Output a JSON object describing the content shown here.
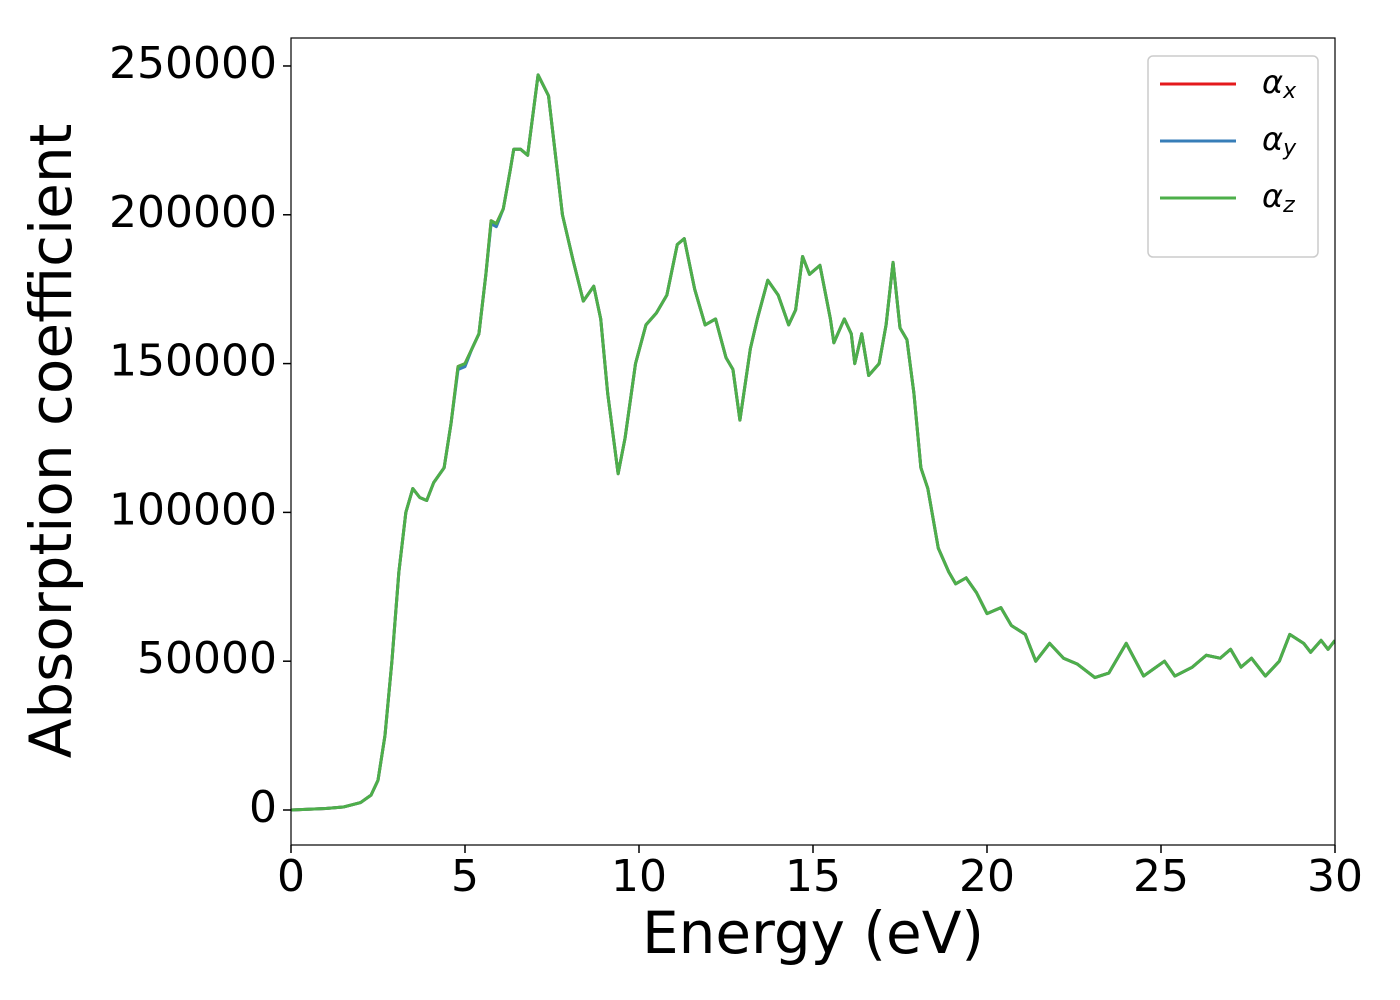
{
  "chart_data": {
    "type": "line",
    "xlabel": "Energy (eV)",
    "ylabel": "Absorption coefficient",
    "xlim": [
      0,
      30
    ],
    "ylim": [
      -11760,
      259400
    ],
    "xticks": [
      0,
      5,
      10,
      15,
      20,
      25,
      30
    ],
    "yticks": [
      0,
      50000,
      100000,
      150000,
      200000,
      250000
    ],
    "grid": false,
    "legend": "upper right",
    "x": [
      0,
      1,
      1.5,
      2,
      2.3,
      2.5,
      2.7,
      2.9,
      3.1,
      3.3,
      3.5,
      3.7,
      3.9,
      4.1,
      4.4,
      4.6,
      4.8,
      5.0,
      5.2,
      5.4,
      5.6,
      5.75,
      5.9,
      6.1,
      6.3,
      6.4,
      6.6,
      6.8,
      7.1,
      7.4,
      7.6,
      7.8,
      8.1,
      8.4,
      8.7,
      8.9,
      9.1,
      9.4,
      9.6,
      9.9,
      10.2,
      10.5,
      10.8,
      11.1,
      11.3,
      11.6,
      11.9,
      12.2,
      12.5,
      12.7,
      12.9,
      13.2,
      13.4,
      13.7,
      14.0,
      14.3,
      14.5,
      14.7,
      14.9,
      15.2,
      15.5,
      15.6,
      15.9,
      16.1,
      16.2,
      16.4,
      16.6,
      16.9,
      17.1,
      17.3,
      17.5,
      17.7,
      17.9,
      18.1,
      18.3,
      18.6,
      18.9,
      19.1,
      19.4,
      19.7,
      20.0,
      20.4,
      20.7,
      21.1,
      21.4,
      21.8,
      22.2,
      22.6,
      23.1,
      23.5,
      24.0,
      24.5,
      25.1,
      25.4,
      25.9,
      26.3,
      26.7,
      27.0,
      27.3,
      27.6,
      28.0,
      28.4,
      28.7,
      29.1,
      29.3,
      29.6,
      29.8,
      30
    ],
    "series": [
      {
        "name": "αx",
        "color": "#e41a1c",
        "values": [
          0,
          500,
          1000,
          2500,
          5000,
          10000,
          25000,
          50000,
          80000,
          100000,
          108000,
          105000,
          104000,
          110000,
          115000,
          130000,
          149000,
          150000,
          155000,
          160000,
          180000,
          198000,
          197000,
          202000,
          215000,
          222000,
          222000,
          220000,
          247000,
          240000,
          220000,
          200000,
          185000,
          171000,
          176000,
          165000,
          140000,
          113000,
          125000,
          150000,
          163000,
          167000,
          173000,
          190000,
          192000,
          175000,
          163000,
          165000,
          152000,
          148000,
          131000,
          155000,
          165000,
          178000,
          173000,
          163000,
          168000,
          186000,
          180000,
          183000,
          165000,
          157000,
          165000,
          160000,
          150000,
          160000,
          146000,
          150000,
          163000,
          184000,
          162000,
          158000,
          140000,
          115000,
          108000,
          88000,
          80000,
          76000,
          78000,
          73000,
          66000,
          68000,
          62000,
          59000,
          50000,
          56000,
          51000,
          49000,
          44500,
          46000,
          56000,
          45000,
          50000,
          45000,
          48000,
          52000,
          51000,
          54000,
          48000,
          51000,
          45000,
          50000,
          59000,
          56000,
          53000,
          57000,
          54000,
          57000
        ]
      },
      {
        "name": "αy",
        "color": "#377eb8",
        "values": [
          0,
          500,
          1000,
          2500,
          5000,
          10000,
          25000,
          50000,
          80000,
          100000,
          108000,
          105000,
          104000,
          110000,
          115000,
          130000,
          148000,
          149000,
          155000,
          160000,
          180000,
          197000,
          196000,
          202000,
          215000,
          222000,
          222000,
          220000,
          247000,
          240000,
          220000,
          200000,
          185000,
          171000,
          176000,
          165000,
          140000,
          113000,
          125000,
          150000,
          163000,
          167000,
          173000,
          190000,
          192000,
          175000,
          163000,
          165000,
          152000,
          148000,
          131000,
          155000,
          165000,
          178000,
          173000,
          163000,
          168000,
          186000,
          180000,
          183000,
          165000,
          157000,
          165000,
          160000,
          150000,
          160000,
          146000,
          150000,
          163000,
          184000,
          162000,
          158000,
          140000,
          115000,
          108000,
          88000,
          80000,
          76000,
          78000,
          73000,
          66000,
          68000,
          62000,
          59000,
          50000,
          56000,
          51000,
          49000,
          44500,
          46000,
          56000,
          45000,
          50000,
          45000,
          48000,
          52000,
          51000,
          54000,
          48000,
          51000,
          45000,
          50000,
          59000,
          56000,
          53000,
          57000,
          54000,
          57000
        ]
      },
      {
        "name": "αz",
        "color": "#4daf4a",
        "values": [
          0,
          500,
          1000,
          2500,
          5000,
          10000,
          25000,
          50000,
          80000,
          100000,
          108000,
          105000,
          104000,
          110000,
          115000,
          130000,
          149000,
          150000,
          155000,
          160000,
          180000,
          198000,
          197000,
          202000,
          215000,
          222000,
          222000,
          220000,
          247000,
          240000,
          220000,
          200000,
          185000,
          171000,
          176000,
          165000,
          140000,
          113000,
          125000,
          150000,
          163000,
          167000,
          173000,
          190000,
          192000,
          175000,
          163000,
          165000,
          152000,
          148000,
          131000,
          155000,
          165000,
          178000,
          173000,
          163000,
          168000,
          186000,
          180000,
          183000,
          165000,
          157000,
          165000,
          160000,
          150000,
          160000,
          146000,
          150000,
          163000,
          184000,
          162000,
          158000,
          140000,
          115000,
          108000,
          88000,
          80000,
          76000,
          78000,
          73000,
          66000,
          68000,
          62000,
          59000,
          50000,
          56000,
          51000,
          49000,
          44500,
          46000,
          56000,
          45000,
          50000,
          45000,
          48000,
          52000,
          51000,
          54000,
          48000,
          51000,
          45000,
          50000,
          59000,
          56000,
          53000,
          57000,
          54000,
          57000
        ]
      }
    ]
  }
}
